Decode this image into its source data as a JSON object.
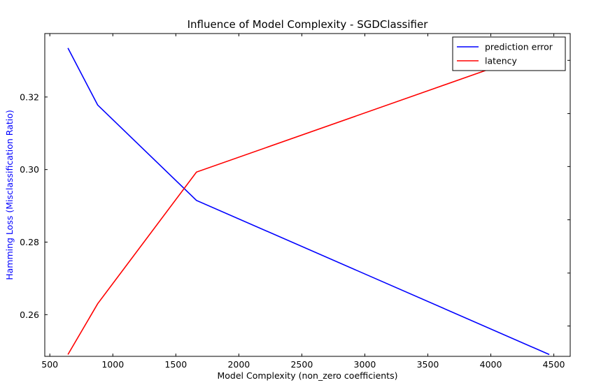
{
  "chart_data": {
    "type": "line",
    "title": "Influence of Model Complexity - SGDClassifier",
    "xlabel": "Model Complexity (non_zero coefficients)",
    "ylabel": "Hamming Loss (Misclassification Ratio)",
    "ylabel_color": "#0000ff",
    "xlim": [
      460,
      4630
    ],
    "ylim": [
      0.2485,
      0.3375
    ],
    "x_ticks": [
      500,
      1000,
      1500,
      2000,
      2500,
      3000,
      3500,
      4000,
      4500
    ],
    "x_tick_labels": [
      "500",
      "1000",
      "1500",
      "2000",
      "2500",
      "3000",
      "3500",
      "4000",
      "4500"
    ],
    "y_ticks": [
      0.26,
      0.28,
      0.3,
      0.32
    ],
    "y_tick_labels": [
      "0.26",
      "0.28",
      "0.30",
      "0.32"
    ],
    "right_axis_tick_fractions": [
      0.094,
      0.258,
      0.423,
      0.588,
      0.752,
      0.917
    ],
    "grid": false,
    "legend_position": "top-right",
    "series": [
      {
        "name": "prediction error",
        "color": "#0000ff",
        "x": [
          644,
          880,
          1664,
          4464
        ],
        "y": [
          0.3335,
          0.3178,
          0.2915,
          0.249
        ]
      },
      {
        "name": "latency",
        "color": "#ff0000",
        "x": [
          644,
          880,
          1664,
          4464
        ],
        "y": [
          0.249,
          0.263,
          0.2993,
          0.3335
        ]
      }
    ]
  }
}
